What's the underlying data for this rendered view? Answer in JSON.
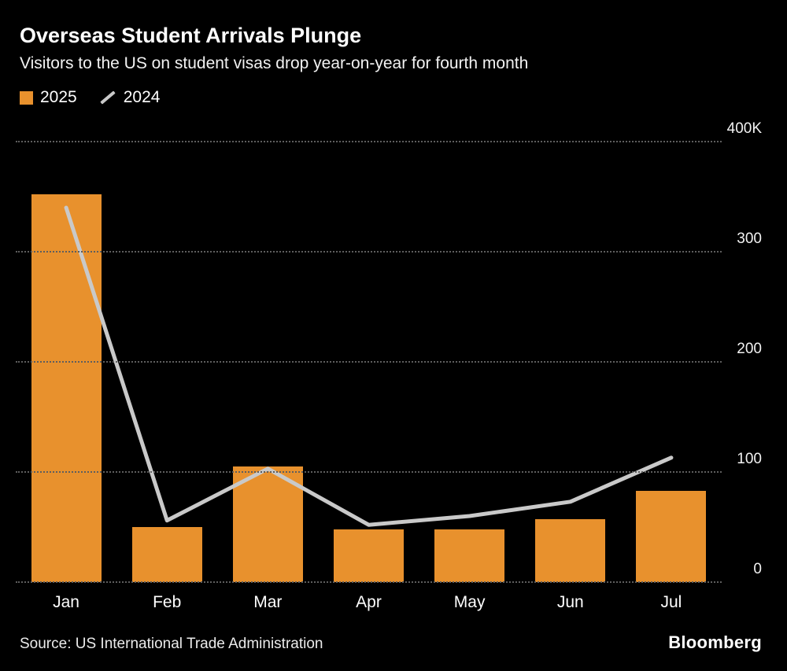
{
  "chart_data": {
    "type": "bar+line",
    "title": "Overseas Student Arrivals Plunge",
    "subtitle": "Visitors to the US on student visas drop year-on-year for fourth month",
    "unit": "thousands of arrivals (K)",
    "categories": [
      "Jan",
      "Feb",
      "Mar",
      "Apr",
      "May",
      "Jun",
      "Jul"
    ],
    "series": [
      {
        "name": "2025",
        "type": "bar",
        "color": "#E8912D",
        "values": [
          352,
          50,
          105,
          48,
          48,
          57,
          83
        ]
      },
      {
        "name": "2024",
        "type": "line",
        "color": "#C9C9C9",
        "values": [
          340,
          56,
          103,
          52,
          60,
          73,
          113
        ]
      }
    ],
    "ylim": [
      0,
      400
    ],
    "yticks": [
      400,
      300,
      200,
      100,
      0
    ],
    "ytick_labels": [
      "400K",
      "300",
      "200",
      "100",
      "0"
    ],
    "grid": "dotted horizontal",
    "legend_position": "top-left",
    "background": "#000000"
  },
  "footer": {
    "source": "Source: US International Trade Administration",
    "brand": "Bloomberg"
  }
}
